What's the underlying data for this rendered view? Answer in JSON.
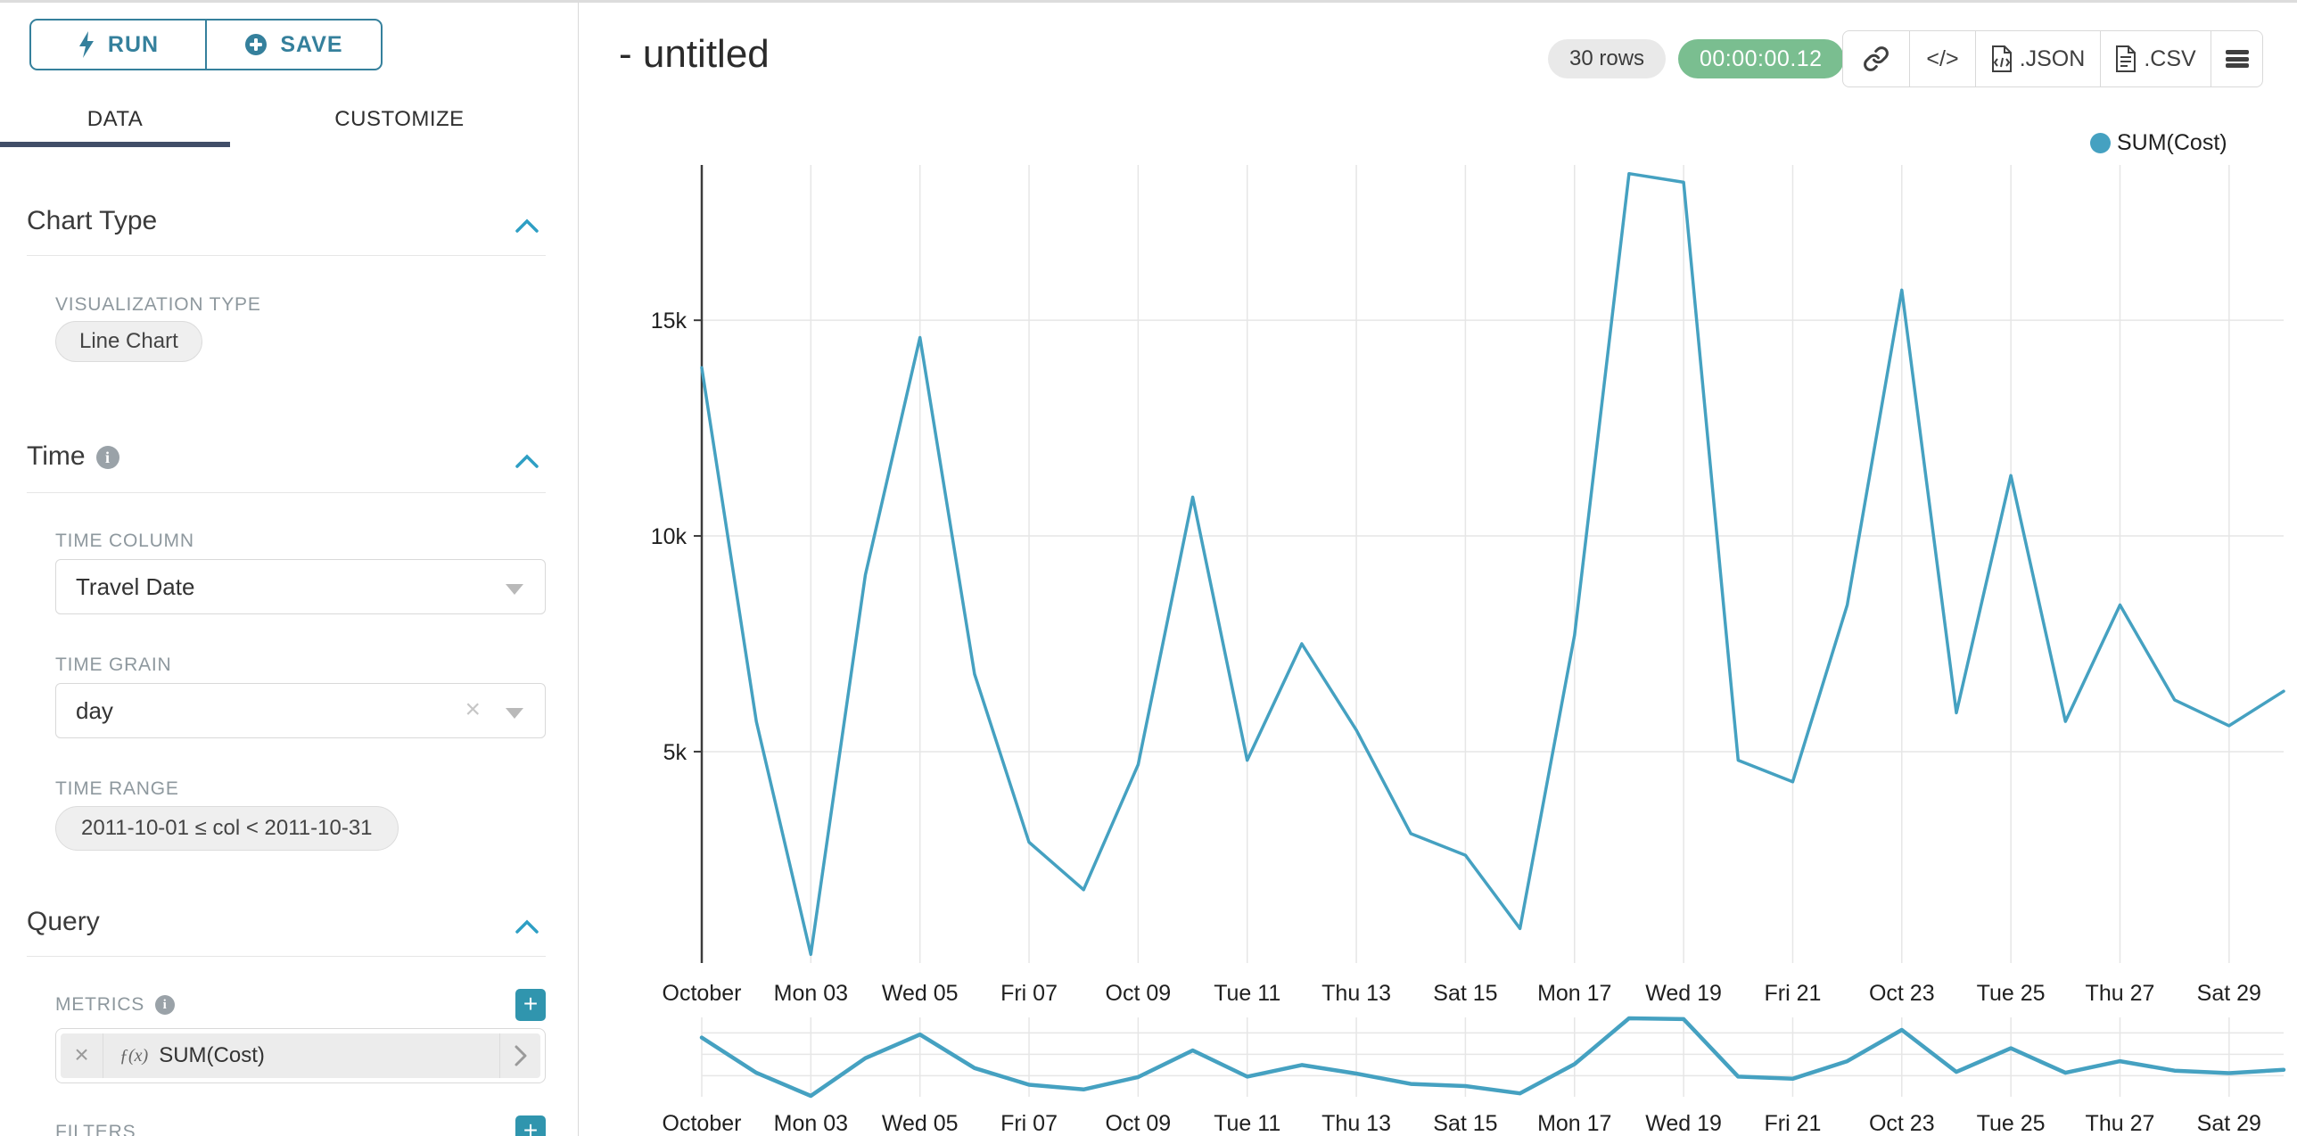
{
  "sidebar": {
    "run_label": "RUN",
    "save_label": "SAVE",
    "tabs": [
      {
        "label": "DATA",
        "active": true
      },
      {
        "label": "CUSTOMIZE",
        "active": false
      }
    ],
    "chart_type_section": {
      "title": "Chart Type",
      "viz_type_label": "VISUALIZATION TYPE",
      "viz_type_value": "Line Chart"
    },
    "time_section": {
      "title": "Time",
      "time_column_label": "TIME COLUMN",
      "time_column_value": "Travel Date",
      "time_grain_label": "TIME GRAIN",
      "time_grain_value": "day",
      "time_range_label": "TIME RANGE",
      "time_range_value": "2011-10-01 ≤ col < 2011-10-31"
    },
    "query_section": {
      "title": "Query",
      "metrics_label": "METRICS",
      "metric_fx": "ƒ(x)",
      "metric_value": "SUM(Cost)",
      "filters_label": "FILTERS"
    }
  },
  "header": {
    "title": "- untitled",
    "row_count": "30 rows",
    "query_time": "00:00:00.12",
    "code_button_label": "</>",
    "json_button_label": ".JSON",
    "csv_button_label": ".CSV"
  },
  "legend": {
    "label": "SUM(Cost)",
    "color": "#45a1c1"
  },
  "colors": {
    "accent_teal": "#35809c",
    "line_teal": "#45a1c1",
    "timer_green": "#7abe90",
    "tab_underline": "#414e68",
    "gridline": "#e6e6e6"
  },
  "chart_data": {
    "type": "line",
    "title": "- untitled",
    "x": [
      "2011-10-01",
      "2011-10-02",
      "2011-10-03",
      "2011-10-04",
      "2011-10-05",
      "2011-10-06",
      "2011-10-07",
      "2011-10-08",
      "2011-10-09",
      "2011-10-10",
      "2011-10-11",
      "2011-10-12",
      "2011-10-13",
      "2011-10-14",
      "2011-10-15",
      "2011-10-16",
      "2011-10-17",
      "2011-10-18",
      "2011-10-19",
      "2011-10-20",
      "2011-10-21",
      "2011-10-22",
      "2011-10-23",
      "2011-10-24",
      "2011-10-25",
      "2011-10-26",
      "2011-10-27",
      "2011-10-28",
      "2011-10-29",
      "2011-10-30"
    ],
    "series": [
      {
        "name": "SUM(Cost)",
        "values": [
          13900,
          5700,
          300,
          9100,
          14600,
          6800,
          2900,
          1800,
          4700,
          10900,
          4800,
          7500,
          5500,
          3100,
          2600,
          900,
          7700,
          18400,
          18200,
          4800,
          4300,
          8400,
          15700,
          5900,
          11400,
          5700,
          8400,
          6200,
          5600,
          6400
        ]
      }
    ],
    "color": "#45a1c1",
    "x_tick_every": 2,
    "x_tick_labels": [
      "October",
      "Mon 03",
      "Wed 05",
      "Fri 07",
      "Oct 09",
      "Tue 11",
      "Thu 13",
      "Sat 15",
      "Mon 17",
      "Wed 19",
      "Fri 21",
      "Oct 23",
      "Tue 25",
      "Thu 27",
      "Sat 29"
    ],
    "y_ticks": [
      {
        "value": 5000,
        "label": "5k"
      },
      {
        "value": 10000,
        "label": "10k"
      },
      {
        "value": 15000,
        "label": "15k"
      }
    ],
    "ylim": [
      100,
      18600
    ],
    "grid": true,
    "legend_position": "top-right",
    "has_focus_mini_chart": true
  }
}
